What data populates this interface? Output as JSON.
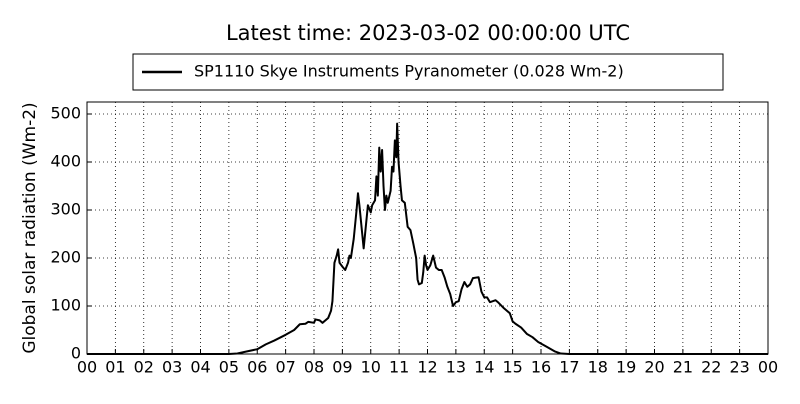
{
  "chart_data": {
    "type": "line",
    "title": "Latest time: 2023-03-02 00:00:00 UTC",
    "y_label": "Global solar radiation (Wm-2)",
    "x": [
      0,
      5.0,
      5.3,
      5.6,
      6.0,
      6.3,
      6.6,
      7.0,
      7.3,
      7.5,
      7.7,
      7.8,
      8.0,
      8.05,
      8.2,
      8.3,
      8.5,
      8.6,
      8.65,
      8.72,
      8.8,
      8.85,
      8.9,
      9.0,
      9.1,
      9.2,
      9.25,
      9.3,
      9.4,
      9.5,
      9.55,
      9.6,
      9.7,
      9.75,
      9.8,
      9.9,
      10.0,
      10.05,
      10.15,
      10.2,
      10.25,
      10.3,
      10.35,
      10.4,
      10.45,
      10.5,
      10.55,
      10.6,
      10.7,
      10.75,
      10.8,
      10.85,
      10.9,
      10.93,
      10.98,
      11.05,
      11.1,
      11.2,
      11.3,
      11.4,
      11.5,
      11.6,
      11.65,
      11.7,
      11.8,
      11.85,
      11.9,
      11.95,
      12.0,
      12.1,
      12.2,
      12.3,
      12.4,
      12.5,
      12.6,
      12.7,
      12.8,
      12.9,
      13.0,
      13.1,
      13.2,
      13.3,
      13.4,
      13.5,
      13.6,
      13.8,
      13.9,
      14.0,
      14.1,
      14.2,
      14.4,
      14.5,
      14.7,
      14.9,
      15.0,
      15.1,
      15.3,
      15.5,
      15.7,
      15.9,
      16.2,
      16.5,
      16.7,
      17.0,
      24
    ],
    "series": [
      {
        "name": "SP1110 Skye Instruments Pyranometer (0.028 Wm-2)",
        "color": "#000000",
        "values": [
          0,
          0,
          1,
          5,
          10,
          20,
          28,
          40,
          50,
          62,
          63,
          67,
          65,
          72,
          70,
          65,
          75,
          90,
          110,
          190,
          205,
          218,
          190,
          182,
          175,
          190,
          205,
          200,
          240,
          300,
          335,
          310,
          250,
          220,
          250,
          310,
          295,
          310,
          320,
          370,
          330,
          430,
          380,
          425,
          350,
          300,
          330,
          315,
          340,
          390,
          380,
          445,
          410,
          480,
          400,
          350,
          320,
          315,
          265,
          258,
          230,
          200,
          155,
          145,
          148,
          170,
          205,
          185,
          175,
          185,
          205,
          180,
          175,
          175,
          160,
          140,
          125,
          100,
          108,
          110,
          135,
          150,
          140,
          145,
          158,
          160,
          130,
          118,
          118,
          108,
          112,
          107,
          95,
          85,
          68,
          63,
          55,
          42,
          35,
          25,
          15,
          5,
          1,
          0,
          0
        ]
      }
    ],
    "xlim": [
      0,
      24
    ],
    "xticks": [
      {
        "value": 0,
        "label": "00"
      },
      {
        "value": 1,
        "label": "01"
      },
      {
        "value": 2,
        "label": "02"
      },
      {
        "value": 3,
        "label": "03"
      },
      {
        "value": 4,
        "label": "04"
      },
      {
        "value": 5,
        "label": "05"
      },
      {
        "value": 6,
        "label": "06"
      },
      {
        "value": 7,
        "label": "07"
      },
      {
        "value": 8,
        "label": "08"
      },
      {
        "value": 9,
        "label": "09"
      },
      10,
      11,
      12,
      13,
      14,
      15,
      16,
      17,
      18,
      19,
      20,
      21,
      22,
      23,
      {
        "value": 24,
        "label": "00"
      }
    ],
    "ylim": [
      0,
      525
    ],
    "yticks": [
      0,
      100,
      200,
      300,
      400,
      500
    ],
    "grid": true
  }
}
